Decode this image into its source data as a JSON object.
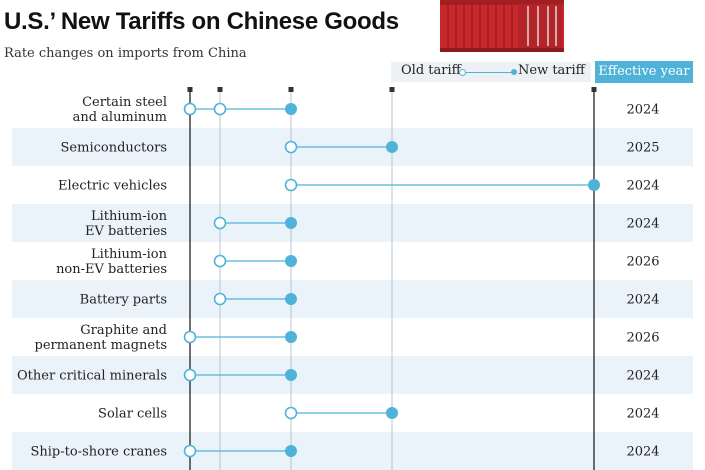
{
  "title": "U.S.’ New Tariffs on Chinese Goods",
  "subtitle": "Rate changes on imports from China",
  "legend": {
    "old": "Old tariff",
    "new": "New tariff"
  },
  "effective_header": "Effective year",
  "colors": {
    "accent": "#4fb3d9",
    "band": "#eaf2fa",
    "grid": "#b8c4cc",
    "axis": "#222222",
    "container": "#c8282b"
  },
  "chart_data": {
    "type": "dumbbell",
    "title": "U.S.’ New Tariffs on Chinese Goods",
    "subtitle": "Rate changes on imports from China",
    "xlabel": "",
    "ylabel": "",
    "xlim": [
      0,
      100
    ],
    "tick_values": [
      0,
      7.5,
      25,
      50,
      100
    ],
    "grid": true,
    "legend": "top-right",
    "series": [
      {
        "name": "Old tariff",
        "marker": "hollow"
      },
      {
        "name": "New tariff",
        "marker": "filled"
      }
    ],
    "rows": [
      {
        "label": [
          "Certain steel",
          "and aluminum"
        ],
        "old": [
          0,
          7.5
        ],
        "new": 25,
        "year": "2024"
      },
      {
        "label": [
          "Semiconductors"
        ],
        "old": [
          25
        ],
        "new": 50,
        "year": "2025"
      },
      {
        "label": [
          "Electric vehicles"
        ],
        "old": [
          25
        ],
        "new": 100,
        "year": "2024"
      },
      {
        "label": [
          "Lithium-ion",
          "EV batteries"
        ],
        "old": [
          7.5
        ],
        "new": 25,
        "year": "2024"
      },
      {
        "label": [
          "Lithium-ion",
          "non-EV batteries"
        ],
        "old": [
          7.5
        ],
        "new": 25,
        "year": "2026"
      },
      {
        "label": [
          "Battery parts"
        ],
        "old": [
          7.5
        ],
        "new": 25,
        "year": "2024"
      },
      {
        "label": [
          "Graphite and",
          "permanent magnets"
        ],
        "old": [
          0
        ],
        "new": 25,
        "year": "2026"
      },
      {
        "label": [
          "Other critical minerals"
        ],
        "old": [
          0
        ],
        "new": 25,
        "year": "2024"
      },
      {
        "label": [
          "Solar cells"
        ],
        "old": [
          25
        ],
        "new": 50,
        "year": "2024"
      },
      {
        "label": [
          "Ship-to-shore cranes"
        ],
        "old": [
          0
        ],
        "new": 25,
        "year": "2024"
      }
    ]
  }
}
